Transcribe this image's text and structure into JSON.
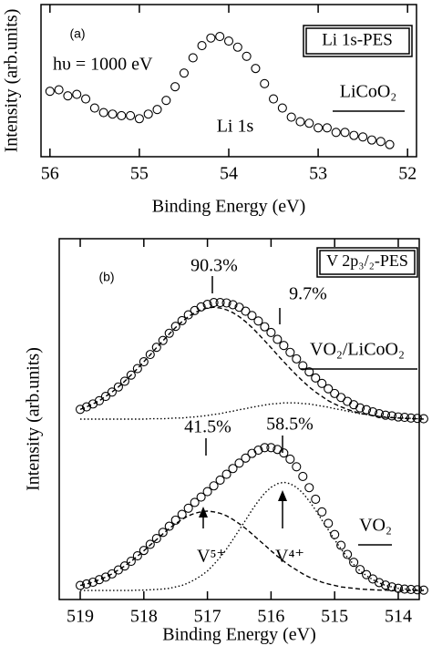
{
  "chart_data": [
    {
      "type": "scatter",
      "panel_label": "(a)",
      "xlabel": "Binding Energy (eV)",
      "ylabel": "Intensity (arb.units)",
      "annotations": [
        "hυ = 1000 eV",
        "Li 1s-PES",
        "LiCoO₂",
        "Li 1s"
      ],
      "xlim": [
        56.1,
        51.9
      ],
      "xticks": [
        56,
        55,
        54,
        53,
        52
      ],
      "ylim": [
        0,
        100
      ],
      "x": [
        56.0,
        55.9,
        55.8,
        55.7,
        55.6,
        55.5,
        55.4,
        55.3,
        55.2,
        55.1,
        55.0,
        54.9,
        54.8,
        54.7,
        54.6,
        54.5,
        54.4,
        54.3,
        54.2,
        54.1,
        54.0,
        53.9,
        53.8,
        53.7,
        53.6,
        53.5,
        53.4,
        53.3,
        53.2,
        53.1,
        53.0,
        52.9,
        52.8,
        52.7,
        52.6,
        52.5,
        52.4,
        52.3,
        52.2
      ],
      "series": [
        {
          "color": "#000000",
          "marker": "circle",
          "values": [
            43,
            44,
            40,
            41,
            38,
            32,
            29,
            28,
            27,
            27,
            25,
            28,
            31,
            37,
            46,
            55,
            65,
            73,
            78,
            79,
            76,
            72,
            66,
            58,
            48,
            38,
            32,
            26,
            23,
            22,
            19,
            19,
            16,
            16,
            14,
            13,
            11,
            10,
            8
          ]
        }
      ]
    },
    {
      "type": "scatter",
      "panel_label": "(b)",
      "xlabel": "Binding Energy (eV)",
      "ylabel": "Intensity (arb.units)",
      "annotations": [
        "V 2p₃/₂-PES",
        "90.3%",
        "9.7%",
        "VO₂/LiCoO₂",
        "41.5%",
        "58.5%",
        "V⁵⁺",
        "V⁴⁺",
        "VO₂"
      ],
      "xlim": [
        519.33,
        513.67
      ],
      "xticks": [
        519,
        518,
        517,
        516,
        515,
        514
      ],
      "ylim": [
        0,
        100
      ],
      "x": [
        519.0,
        518.9,
        518.8,
        518.7,
        518.6,
        518.5,
        518.4,
        518.3,
        518.2,
        518.1,
        518.0,
        517.9,
        517.8,
        517.7,
        517.6,
        517.5,
        517.4,
        517.3,
        517.2,
        517.1,
        517.0,
        516.9,
        516.8,
        516.7,
        516.6,
        516.5,
        516.4,
        516.3,
        516.2,
        516.1,
        516.0,
        515.9,
        515.8,
        515.7,
        515.6,
        515.5,
        515.4,
        515.3,
        515.2,
        515.1,
        515.0,
        514.9,
        514.8,
        514.7,
        514.6,
        514.5,
        514.4,
        514.3,
        514.2,
        514.1,
        514.0,
        513.9,
        513.8,
        513.7,
        513.6
      ],
      "series": [
        {
          "color": "#000000",
          "line_style": "dashed",
          "values": [
            52.7,
            53.4,
            54.2,
            55.1,
            56.3,
            57.5,
            58.9,
            60.5,
            62.2,
            64.0,
            65.9,
            67.8,
            69.8,
            71.7,
            73.6,
            75.4,
            77.0,
            78.4,
            79.5,
            80.3,
            80.8,
            81.0,
            80.8,
            80.3,
            79.5,
            78.4,
            77.0,
            75.4,
            73.6,
            71.7,
            69.8,
            67.8,
            65.9,
            64.0,
            62.2,
            60.5,
            58.9,
            57.5,
            56.3,
            55.1,
            54.2,
            53.4,
            52.7,
            52.1,
            51.6,
            51.3,
            51.0,
            50.7,
            50.5,
            50.4,
            50.3,
            50.2,
            50.1,
            50.1,
            50.0
          ]
        },
        {
          "color": "#000000",
          "line_style": "dotted",
          "values": [
            50.0,
            50.0,
            50.0,
            50.0,
            50.0,
            50.0,
            50.0,
            50.0,
            50.0,
            50.0,
            50.0,
            50.1,
            50.1,
            50.1,
            50.2,
            50.3,
            50.3,
            50.5,
            50.6,
            50.8,
            51.0,
            51.3,
            51.5,
            51.9,
            52.2,
            52.6,
            52.9,
            53.3,
            53.6,
            53.9,
            54.2,
            54.3,
            54.5,
            54.5,
            54.5,
            54.3,
            54.2,
            53.9,
            53.6,
            53.3,
            52.9,
            52.6,
            52.2,
            51.9,
            51.5,
            51.3,
            51.0,
            50.8,
            50.6,
            50.5,
            50.3,
            50.3,
            50.2,
            50.1,
            50.1
          ]
        },
        {
          "color": "#000000",
          "marker": "circle",
          "values": [
            52.7,
            53.4,
            54.2,
            55.1,
            56.3,
            57.5,
            58.9,
            60.5,
            62.2,
            64.0,
            65.9,
            67.9,
            69.9,
            71.8,
            73.8,
            75.7,
            77.3,
            78.9,
            80.1,
            81.1,
            81.8,
            82.3,
            82.3,
            82.2,
            81.7,
            81.0,
            79.9,
            78.7,
            77.2,
            75.6,
            74.0,
            72.1,
            70.4,
            68.5,
            66.7,
            64.8,
            63.1,
            61.4,
            59.9,
            58.4,
            57.1,
            56.0,
            54.9,
            54.0,
            53.1,
            52.6,
            52.0,
            51.5,
            51.1,
            50.9,
            50.6,
            50.5,
            50.3,
            50.2,
            50.1
          ]
        },
        {
          "color": "#000000",
          "line_style": "dashed",
          "values": [
            3.9,
            4.3,
            4.8,
            5.5,
            6.2,
            7.1,
            8.2,
            9.3,
            10.6,
            12.0,
            13.5,
            15.1,
            16.6,
            18.2,
            19.7,
            21.0,
            22.2,
            23.2,
            23.9,
            24.3,
            24.5,
            24.3,
            23.9,
            23.2,
            22.2,
            21.0,
            19.7,
            18.2,
            16.6,
            15.1,
            13.5,
            12.0,
            10.6,
            9.3,
            8.2,
            7.1,
            6.2,
            5.5,
            4.8,
            4.3,
            3.9,
            3.5,
            3.3,
            3.1,
            2.9,
            2.8,
            2.7,
            2.6,
            2.6,
            2.5,
            2.5,
            2.5,
            2.5,
            2.5,
            2.5
          ]
        },
        {
          "color": "#000000",
          "line_style": "dotted",
          "values": [
            2.5,
            2.5,
            2.5,
            2.5,
            2.5,
            2.5,
            2.5,
            2.5,
            2.5,
            2.6,
            2.6,
            2.7,
            2.8,
            2.9,
            3.1,
            3.5,
            3.9,
            4.6,
            5.5,
            6.6,
            7.9,
            9.7,
            11.7,
            14.0,
            16.6,
            19.3,
            22.0,
            24.8,
            27.3,
            29.5,
            31.1,
            32.1,
            32.5,
            32.1,
            31.1,
            29.5,
            27.3,
            24.8,
            22.0,
            19.3,
            16.6,
            14.0,
            11.7,
            9.7,
            7.9,
            6.6,
            5.5,
            4.6,
            3.9,
            3.5,
            3.1,
            2.9,
            2.8,
            2.7,
            2.6
          ]
        },
        {
          "color": "#000000",
          "marker": "circle",
          "values": [
            3.9,
            4.3,
            4.8,
            5.5,
            6.2,
            7.1,
            8.2,
            9.3,
            10.6,
            12.1,
            13.6,
            15.3,
            16.9,
            18.6,
            20.3,
            22.0,
            23.6,
            25.3,
            26.9,
            28.4,
            29.9,
            31.5,
            33.1,
            34.7,
            36.3,
            37.8,
            39.2,
            40.5,
            41.4,
            42.1,
            42.1,
            41.6,
            40.6,
            38.9,
            36.8,
            34.1,
            31.0,
            27.8,
            24.3,
            21.1,
            18.0,
            15.0,
            12.5,
            10.3,
            8.3,
            6.9,
            5.7,
            4.7,
            4.0,
            3.5,
            3.1,
            2.9,
            2.8,
            2.7,
            2.6
          ]
        }
      ]
    }
  ]
}
